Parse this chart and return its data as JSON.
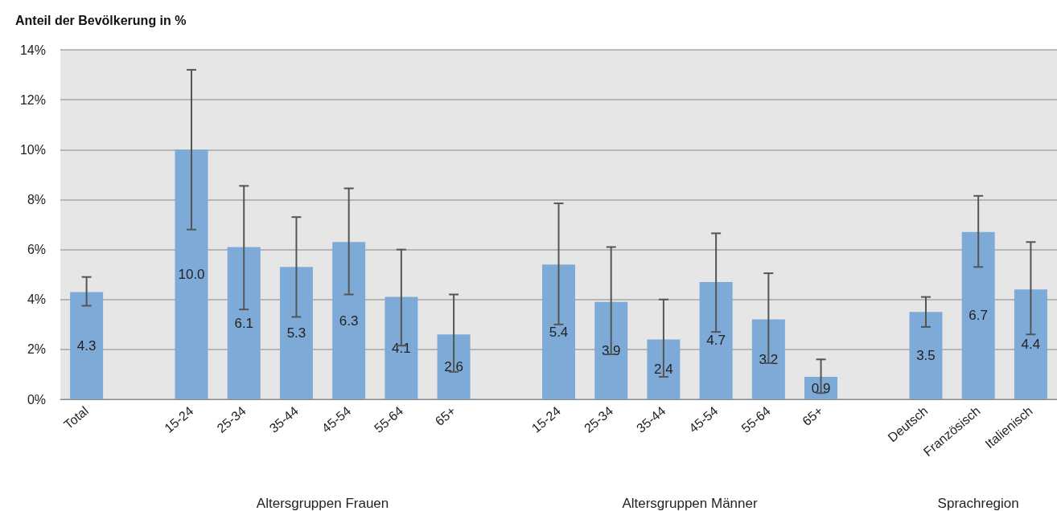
{
  "chart_data": {
    "type": "bar",
    "ylabel": "Anteil der Bevölkerung in %",
    "categories": [
      "Total",
      null,
      "15-24",
      "25-34",
      "35-44",
      "45-54",
      "55-64",
      "65+",
      null,
      "15-24",
      "25-34",
      "35-44",
      "45-54",
      "55-64",
      "65+",
      null,
      "Deutsch",
      "Französisch",
      "Italienisch"
    ],
    "values": [
      4.3,
      null,
      10.0,
      6.1,
      5.3,
      6.3,
      4.1,
      2.6,
      null,
      5.4,
      3.9,
      2.4,
      4.7,
      3.2,
      0.9,
      null,
      3.5,
      6.7,
      4.4
    ],
    "errors": [
      [
        3.75,
        4.9
      ],
      null,
      [
        6.8,
        13.2
      ],
      [
        3.6,
        8.55
      ],
      [
        3.3,
        7.3
      ],
      [
        4.2,
        8.45
      ],
      [
        2.15,
        6.0
      ],
      [
        1.1,
        4.2
      ],
      null,
      [
        3.0,
        7.85
      ],
      [
        1.8,
        6.1
      ],
      [
        0.9,
        4.0
      ],
      [
        2.7,
        6.65
      ],
      [
        1.45,
        5.05
      ],
      [
        0.25,
        1.6
      ],
      null,
      [
        2.9,
        4.1
      ],
      [
        5.3,
        8.15
      ],
      [
        2.6,
        6.3
      ]
    ],
    "color": "#7eaad8",
    "value_labels": [
      "4.3",
      null,
      "10.0",
      "6.1",
      "5.3",
      "6.3",
      "4.1",
      "2.6",
      null,
      "5.4",
      "3.9",
      "2.4",
      "4.7",
      "3.2",
      "0.9",
      null,
      "3.5",
      "6.7",
      "4.4"
    ],
    "ylim": [
      0,
      14
    ],
    "yticks": [
      {
        "value": 0,
        "label": "0%"
      },
      {
        "value": 2,
        "label": "2%"
      },
      {
        "value": 4,
        "label": "4%"
      },
      {
        "value": 6,
        "label": "6%"
      },
      {
        "value": 8,
        "label": "8%"
      },
      {
        "value": 10,
        "label": "10%"
      },
      {
        "value": 12,
        "label": "12%"
      },
      {
        "value": 14,
        "label": "14%"
      }
    ],
    "grid": "y",
    "annotations": [
      "Altersgruppen Frauen",
      "Altersgruppen Männer",
      "Sprachregion"
    ]
  }
}
